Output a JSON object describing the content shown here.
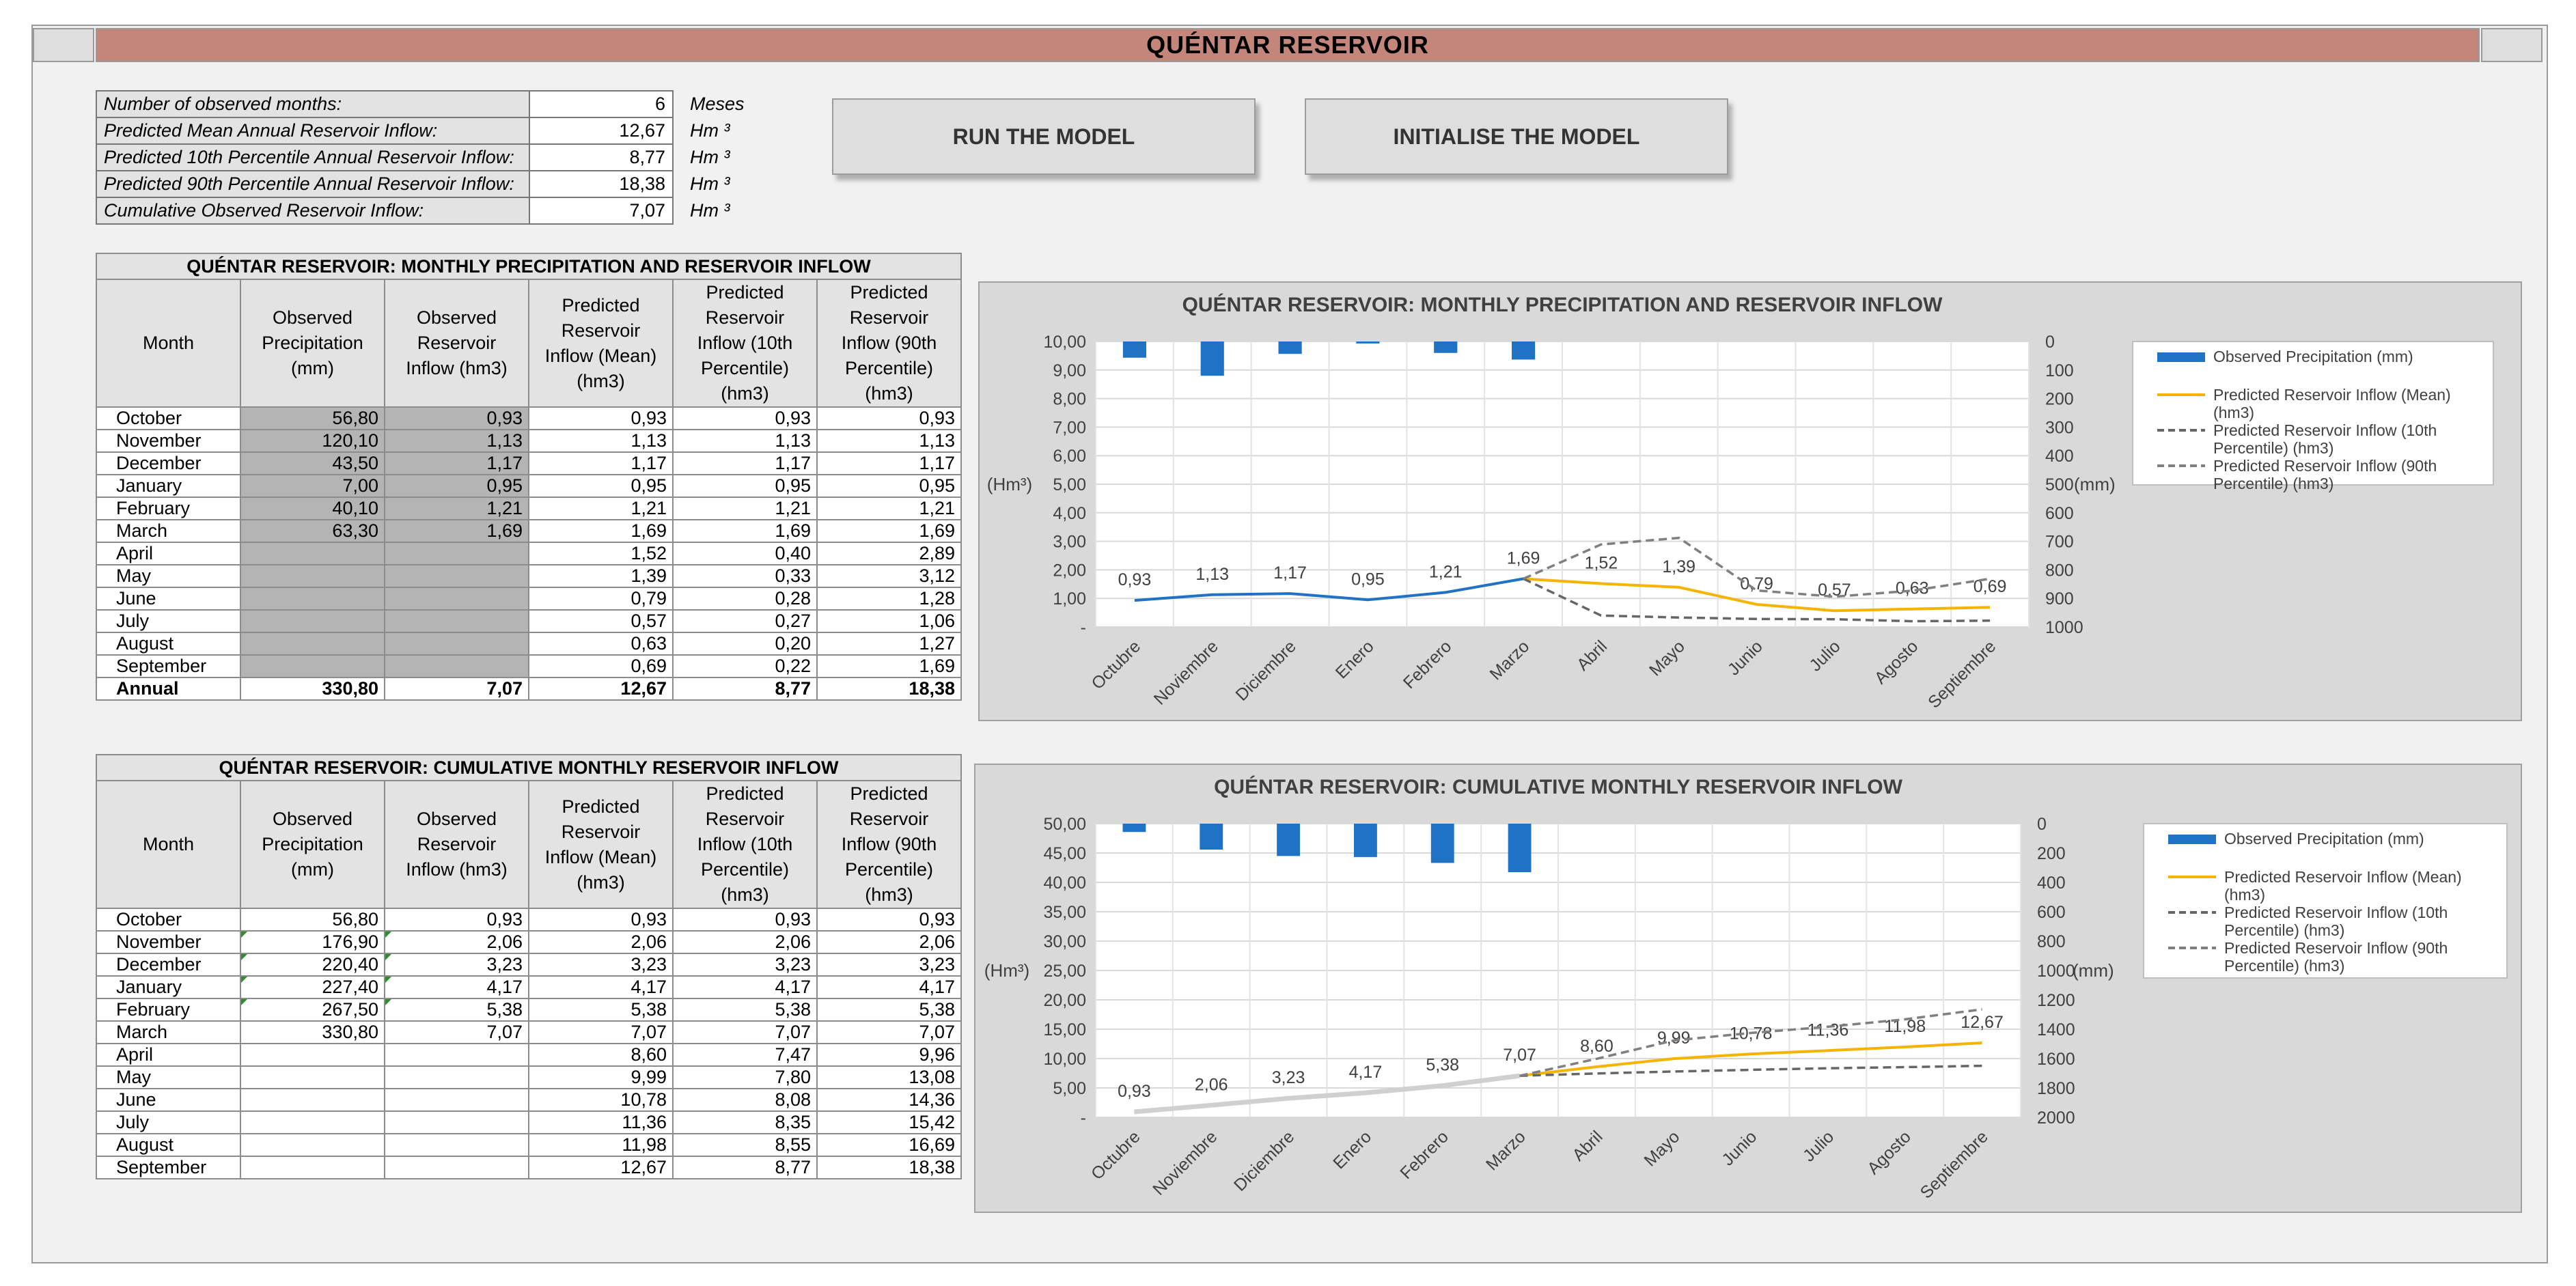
{
  "title": "QUÉNTAR RESERVOIR",
  "info": [
    {
      "label": "Number of observed months:",
      "value": "6",
      "unit": "Meses"
    },
    {
      "label": "Predicted Mean Annual Reservoir Inflow:",
      "value": "12,67",
      "unit": "Hm ³"
    },
    {
      "label": "Predicted 10th Percentile Annual Reservoir Inflow:",
      "value": "8,77",
      "unit": "Hm ³"
    },
    {
      "label": "Predicted 90th Percentile Annual Reservoir Inflow:",
      "value": "18,38",
      "unit": "Hm ³"
    },
    {
      "label": "Cumulative Observed Reservoir Inflow:",
      "value": "7,07",
      "unit": "Hm ³"
    }
  ],
  "buttons": {
    "run": "RUN THE MODEL",
    "init": "INITIALISE THE MODEL"
  },
  "table1": {
    "title": "QUÉNTAR RESERVOIR: MONTHLY PRECIPITATION AND RESERVOIR INFLOW",
    "headers": [
      "Month",
      "Observed Precipitation (mm)",
      "Observed Reservoir Inflow (hm3)",
      "Predicted Reservoir Inflow (Mean) (hm3)",
      "Predicted Reservoir Inflow (10th Percentile) (hm3)",
      "Predicted Reservoir Inflow (90th Percentile) (hm3)"
    ],
    "rows": [
      [
        "October",
        "56,80",
        "0,93",
        "0,93",
        "0,93",
        "0,93"
      ],
      [
        "November",
        "120,10",
        "1,13",
        "1,13",
        "1,13",
        "1,13"
      ],
      [
        "December",
        "43,50",
        "1,17",
        "1,17",
        "1,17",
        "1,17"
      ],
      [
        "January",
        "7,00",
        "0,95",
        "0,95",
        "0,95",
        "0,95"
      ],
      [
        "February",
        "40,10",
        "1,21",
        "1,21",
        "1,21",
        "1,21"
      ],
      [
        "March",
        "63,30",
        "1,69",
        "1,69",
        "1,69",
        "1,69"
      ],
      [
        "April",
        "",
        "",
        "1,52",
        "0,40",
        "2,89"
      ],
      [
        "May",
        "",
        "",
        "1,39",
        "0,33",
        "3,12"
      ],
      [
        "June",
        "",
        "",
        "0,79",
        "0,28",
        "1,28"
      ],
      [
        "July",
        "",
        "",
        "0,57",
        "0,27",
        "1,06"
      ],
      [
        "August",
        "",
        "",
        "0,63",
        "0,20",
        "1,27"
      ],
      [
        "September",
        "",
        "",
        "0,69",
        "0,22",
        "1,69"
      ]
    ],
    "total": [
      "Annual",
      "330,80",
      "7,07",
      "12,67",
      "8,77",
      "18,38"
    ]
  },
  "table2": {
    "title": "QUÉNTAR RESERVOIR: CUMULATIVE MONTHLY RESERVOIR INFLOW",
    "headers": [
      "Month",
      "Observed Precipitation (mm)",
      "Observed Reservoir Inflow (hm3)",
      "Predicted Reservoir Inflow (Mean) (hm3)",
      "Predicted Reservoir Inflow (10th Percentile) (hm3)",
      "Predicted Reservoir Inflow (90th Percentile) (hm3)"
    ],
    "rows": [
      [
        "October",
        "56,80",
        "0,93",
        "0,93",
        "0,93",
        "0,93"
      ],
      [
        "November",
        "176,90",
        "2,06",
        "2,06",
        "2,06",
        "2,06"
      ],
      [
        "December",
        "220,40",
        "3,23",
        "3,23",
        "3,23",
        "3,23"
      ],
      [
        "January",
        "227,40",
        "4,17",
        "4,17",
        "4,17",
        "4,17"
      ],
      [
        "February",
        "267,50",
        "5,38",
        "5,38",
        "5,38",
        "5,38"
      ],
      [
        "March",
        "330,80",
        "7,07",
        "7,07",
        "7,07",
        "7,07"
      ],
      [
        "April",
        "",
        "",
        "8,60",
        "7,47",
        "9,96"
      ],
      [
        "May",
        "",
        "",
        "9,99",
        "7,80",
        "13,08"
      ],
      [
        "June",
        "",
        "",
        "10,78",
        "8,08",
        "14,36"
      ],
      [
        "July",
        "",
        "",
        "11,36",
        "8,35",
        "15,42"
      ],
      [
        "August",
        "",
        "",
        "11,98",
        "8,55",
        "16,69"
      ],
      [
        "September",
        "",
        "",
        "12,67",
        "8,77",
        "18,38"
      ]
    ]
  },
  "chart_data": [
    {
      "type": "bar+line",
      "title": "QUÉNTAR RESERVOIR: MONTHLY PRECIPITATION AND RESERVOIR INFLOW",
      "ylabel": "(Hm³)",
      "y2label": "(mm)",
      "categories": [
        "Octubre",
        "Noviembre",
        "Diciembre",
        "Enero",
        "Febrero",
        "Marzo",
        "Abril",
        "Mayo",
        "Junio",
        "Julio",
        "Agosto",
        "Septiembre"
      ],
      "ylim": [
        0,
        10
      ],
      "yticks": [
        "-",
        "1,00",
        "2,00",
        "3,00",
        "4,00",
        "5,00",
        "6,00",
        "7,00",
        "8,00",
        "9,00",
        "10,00"
      ],
      "y2lim": [
        0,
        1000
      ],
      "y2ticks": [
        "0",
        "100",
        "200",
        "300",
        "400",
        "500",
        "600",
        "700",
        "800",
        "900",
        "1000"
      ],
      "y2_inverted": true,
      "grid": true,
      "legend_position": "right",
      "series": [
        {
          "name": "Observed Precipitation (mm)",
          "kind": "bar",
          "axis": "y2",
          "color": "#1f72c4",
          "values": [
            56.8,
            120.1,
            43.5,
            7.0,
            40.1,
            63.3,
            null,
            null,
            null,
            null,
            null,
            null
          ]
        },
        {
          "name": "",
          "kind": "line",
          "color": "#1f72c4",
          "values": [
            0.93,
            1.13,
            1.17,
            0.95,
            1.21,
            1.69,
            null,
            null,
            null,
            null,
            null,
            null
          ],
          "labels": [
            "0,93",
            "1,13",
            "1,17",
            "0,95",
            "1,21",
            "1,69",
            "",
            "",
            "",
            "",
            "",
            ""
          ]
        },
        {
          "name": "Predicted Reservoir Inflow (Mean) (hm3)",
          "kind": "line",
          "color": "#f5b400",
          "values": [
            null,
            null,
            null,
            null,
            null,
            1.69,
            1.52,
            1.39,
            0.79,
            0.57,
            0.63,
            0.69
          ],
          "labels": [
            "",
            "",
            "",
            "",
            "",
            "",
            "1,52",
            "1,39",
            "0,79",
            "0,57",
            "0,63",
            "0,69"
          ]
        },
        {
          "name": "Predicted Reservoir Inflow (10th Percentile) (hm3)",
          "kind": "dashed",
          "color": "#666666",
          "values": [
            null,
            null,
            null,
            null,
            null,
            1.69,
            0.4,
            0.33,
            0.28,
            0.27,
            0.2,
            0.22
          ]
        },
        {
          "name": "Predicted Reservoir Inflow (90th Percentile) (hm3)",
          "kind": "dashed",
          "color": "#808080",
          "values": [
            null,
            null,
            null,
            null,
            null,
            1.69,
            2.89,
            3.12,
            1.28,
            1.06,
            1.27,
            1.69
          ]
        }
      ]
    },
    {
      "type": "bar+line",
      "title": "QUÉNTAR RESERVOIR: CUMULATIVE MONTHLY RESERVOIR INFLOW",
      "ylabel": "(Hm³)",
      "y2label": "(mm)",
      "categories": [
        "Octubre",
        "Noviembre",
        "Diciembre",
        "Enero",
        "Febrero",
        "Marzo",
        "Abril",
        "Mayo",
        "Junio",
        "Julio",
        "Agosto",
        "Septiembre"
      ],
      "ylim": [
        0,
        50
      ],
      "yticks": [
        "-",
        "5,00",
        "10,00",
        "15,00",
        "20,00",
        "25,00",
        "30,00",
        "35,00",
        "40,00",
        "45,00",
        "50,00"
      ],
      "y2lim": [
        0,
        2000
      ],
      "y2ticks": [
        "0",
        "200",
        "400",
        "600",
        "800",
        "1000",
        "1200",
        "1400",
        "1600",
        "1800",
        "2000"
      ],
      "y2_inverted": true,
      "grid": true,
      "legend_position": "right",
      "series": [
        {
          "name": "Observed Precipitation (mm)",
          "kind": "bar",
          "axis": "y2",
          "color": "#1f72c4",
          "values": [
            56.8,
            176.9,
            220.4,
            227.4,
            267.5,
            330.8,
            null,
            null,
            null,
            null,
            null,
            null
          ]
        },
        {
          "name": "",
          "kind": "line",
          "color": "#d0d0d0",
          "values": [
            0.93,
            2.06,
            3.23,
            4.17,
            5.38,
            7.07,
            null,
            null,
            null,
            null,
            null,
            null
          ],
          "labels": [
            "0,93",
            "2,06",
            "3,23",
            "4,17",
            "5,38",
            "7,07",
            "",
            "",
            "",
            "",
            "",
            ""
          ]
        },
        {
          "name": "Predicted Reservoir Inflow (Mean) (hm3)",
          "kind": "line",
          "color": "#f5b400",
          "values": [
            null,
            null,
            null,
            null,
            null,
            7.07,
            8.6,
            9.99,
            10.78,
            11.36,
            11.98,
            12.67
          ],
          "labels": [
            "",
            "",
            "",
            "",
            "",
            "",
            "8,60",
            "9,99",
            "10,78",
            "11,36",
            "11,98",
            "12,67"
          ]
        },
        {
          "name": "Predicted Reservoir Inflow (10th Percentile) (hm3)",
          "kind": "dashed",
          "color": "#666666",
          "values": [
            null,
            null,
            null,
            null,
            null,
            7.07,
            7.47,
            7.8,
            8.08,
            8.35,
            8.55,
            8.77
          ]
        },
        {
          "name": "Predicted Reservoir Inflow (90th Percentile) (hm3)",
          "kind": "dashed",
          "color": "#808080",
          "values": [
            null,
            null,
            null,
            null,
            null,
            7.07,
            9.96,
            13.08,
            14.36,
            15.42,
            16.69,
            18.38
          ]
        }
      ]
    }
  ]
}
